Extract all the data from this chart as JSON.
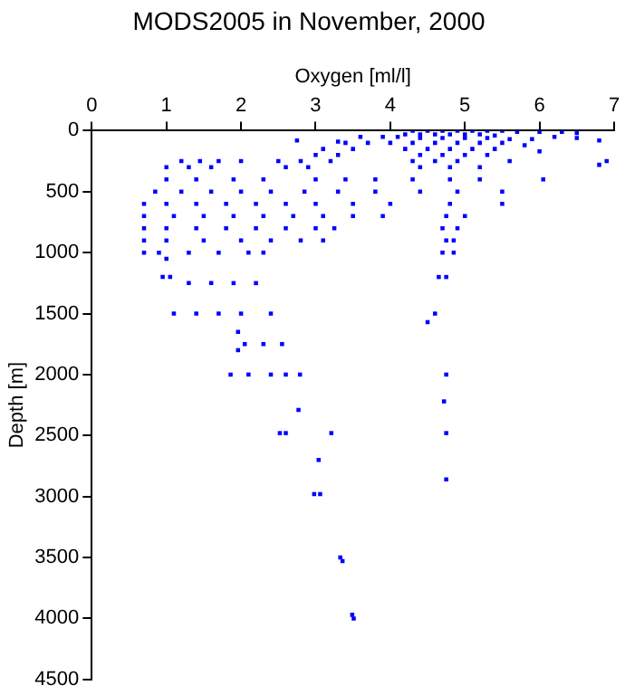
{
  "chart_data": {
    "type": "scatter",
    "title": "MODS2005 in November, 2000",
    "xlabel": "Oxygen [ml/l]",
    "ylabel": "Depth [m]",
    "xlim": [
      0,
      7
    ],
    "xticks": [
      0,
      1,
      2,
      3,
      4,
      5,
      6,
      7
    ],
    "ylim": [
      4500,
      0
    ],
    "yticks": [
      0,
      500,
      1000,
      1500,
      2000,
      2500,
      3000,
      3500,
      4000,
      4500
    ],
    "grid": false,
    "legend": false,
    "marker": "square",
    "series": [
      {
        "color": "#0000ff",
        "x": [
          4.3,
          4.5,
          4.7,
          4.9,
          5.1,
          5.3,
          5.5,
          5.7,
          6.0,
          6.3,
          6.5,
          4.2,
          4.4,
          4.6,
          4.8,
          5.0,
          5.2,
          5.4,
          3.6,
          3.9,
          4.1,
          4.4,
          4.7,
          5.0,
          5.3,
          5.6,
          5.9,
          6.2,
          6.5,
          6.8,
          3.4,
          3.7,
          4.0,
          4.3,
          4.6,
          4.9,
          5.2,
          5.5,
          5.8,
          3.1,
          3.5,
          4.2,
          4.5,
          4.8,
          5.1,
          5.4,
          6.0,
          3.0,
          3.3,
          4.4,
          4.7,
          5.0,
          5.3,
          3.2,
          4.3,
          4.6,
          4.9,
          5.6,
          6.9,
          2.9,
          4.4,
          4.8,
          5.2,
          6.8,
          2.75,
          3.3,
          1.2,
          1.45,
          1.7,
          2.0,
          2.5,
          2.8,
          1.0,
          1.3,
          1.6,
          2.6,
          3.0,
          3.4,
          3.8,
          4.3,
          4.8,
          5.2,
          6.05,
          1.0,
          1.4,
          1.9,
          2.3,
          0.85,
          1.2,
          1.6,
          2.0,
          2.4,
          2.85,
          3.3,
          3.8,
          4.4,
          4.9,
          5.5,
          0.7,
          1.0,
          1.4,
          1.8,
          2.2,
          2.6,
          3.0,
          3.5,
          4.0,
          4.8,
          5.5,
          0.7,
          1.1,
          1.5,
          1.9,
          2.3,
          2.7,
          3.1,
          3.5,
          3.9,
          4.75,
          5.0,
          0.7,
          1.0,
          1.4,
          1.8,
          2.2,
          2.6,
          3.0,
          3.25,
          4.7,
          4.9,
          0.7,
          1.0,
          1.5,
          2.0,
          2.4,
          2.8,
          3.1,
          4.75,
          4.85,
          0.7,
          0.9,
          1.3,
          1.7,
          2.1,
          2.3,
          4.7,
          4.85,
          1.0,
          0.95,
          1.05,
          4.65,
          4.75,
          1.3,
          1.6,
          1.9,
          2.2,
          1.1,
          1.4,
          1.7,
          2.0,
          2.4,
          4.6,
          4.5,
          1.96,
          2.05,
          2.3,
          2.55,
          1.96,
          1.86,
          2.1,
          2.4,
          2.6,
          2.79,
          4.75,
          4.72,
          2.77,
          2.52,
          2.6,
          3.21,
          4.75,
          3.04,
          4.75,
          2.98,
          3.06,
          3.33,
          3.36,
          3.49,
          3.51
        ],
        "values": [
          0,
          0,
          0,
          0,
          0,
          0,
          0,
          10,
          10,
          10,
          20,
          30,
          30,
          30,
          30,
          30,
          30,
          40,
          50,
          50,
          50,
          60,
          60,
          60,
          60,
          70,
          70,
          50,
          60,
          80,
          100,
          100,
          100,
          100,
          100,
          100,
          100,
          100,
          120,
          150,
          150,
          150,
          150,
          150,
          150,
          150,
          170,
          200,
          200,
          200,
          200,
          200,
          200,
          250,
          250,
          250,
          250,
          250,
          250,
          300,
          300,
          300,
          300,
          280,
          80,
          90,
          250,
          250,
          250,
          250,
          250,
          250,
          300,
          300,
          300,
          300,
          400,
          400,
          400,
          400,
          400,
          400,
          400,
          400,
          400,
          400,
          400,
          500,
          500,
          500,
          500,
          500,
          500,
          500,
          500,
          500,
          500,
          500,
          600,
          600,
          600,
          600,
          600,
          600,
          600,
          600,
          600,
          600,
          600,
          700,
          700,
          700,
          700,
          700,
          700,
          700,
          700,
          700,
          700,
          700,
          800,
          800,
          800,
          800,
          800,
          800,
          800,
          800,
          800,
          800,
          900,
          900,
          900,
          900,
          900,
          900,
          900,
          900,
          900,
          1000,
          1000,
          1000,
          1000,
          1000,
          1000,
          1000,
          1000,
          1050,
          1200,
          1200,
          1200,
          1200,
          1250,
          1250,
          1250,
          1250,
          1500,
          1500,
          1500,
          1500,
          1500,
          1500,
          1570,
          1650,
          1750,
          1750,
          1750,
          1800,
          2000,
          2000,
          2000,
          2000,
          2000,
          2000,
          2220,
          2290,
          2480,
          2480,
          2480,
          2480,
          2700,
          2860,
          2980,
          2980,
          3500,
          3530,
          3970,
          4000
        ]
      }
    ]
  }
}
